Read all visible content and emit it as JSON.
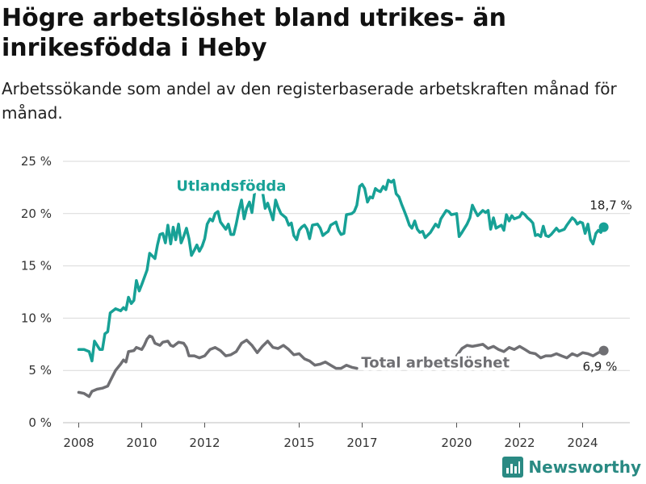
{
  "title": "Högre arbetslöshet bland utrikes- än inrikesfödda i Heby",
  "subtitle": "Arbetssökande som andel av den registerbaserade arbetskraften månad för månad.",
  "brand": {
    "name": "Newsworthy",
    "color": "#2a8a83"
  },
  "colors": {
    "foreign_born": "#17a196",
    "total": "#6f6f73",
    "grid": "#d9d9d9"
  },
  "chart_data": {
    "type": "line",
    "title": "Högre arbetslöshet bland utrikes- än inrikesfödda i Heby",
    "subtitle": "Arbetssökande som andel av den registerbaserade arbetskraften månad för månad.",
    "xlabel": "",
    "ylabel": "",
    "xlim": [
      2007.5,
      2025.5
    ],
    "ylim": [
      0,
      25
    ],
    "yticks": [
      0,
      5,
      10,
      15,
      20,
      25
    ],
    "ytick_labels": [
      "0 %",
      "5 %",
      "10 %",
      "15 %",
      "20 %",
      "25 %"
    ],
    "xticks": [
      2008,
      2010,
      2012,
      2015,
      2017,
      2020,
      2022,
      2024
    ],
    "xtick_labels": [
      "2008",
      "2010",
      "2012",
      "2015",
      "2017",
      "2020",
      "2022",
      "2024"
    ],
    "grid": true,
    "series": [
      {
        "name": "Utlandsfödda",
        "end_label": "18,7 %",
        "points": [
          [
            2008.0,
            7.0
          ],
          [
            2008.17,
            7.0
          ],
          [
            2008.33,
            6.8
          ],
          [
            2008.42,
            5.9
          ],
          [
            2008.5,
            7.8
          ],
          [
            2008.67,
            7.0
          ],
          [
            2008.75,
            7.0
          ],
          [
            2008.83,
            8.5
          ],
          [
            2008.92,
            8.7
          ],
          [
            2009.0,
            10.5
          ],
          [
            2009.17,
            10.9
          ],
          [
            2009.33,
            10.7
          ],
          [
            2009.42,
            11.0
          ],
          [
            2009.5,
            10.8
          ],
          [
            2009.58,
            12.0
          ],
          [
            2009.67,
            11.4
          ],
          [
            2009.75,
            11.7
          ],
          [
            2009.83,
            13.6
          ],
          [
            2009.92,
            12.6
          ],
          [
            2010.0,
            13.2
          ],
          [
            2010.17,
            14.6
          ],
          [
            2010.25,
            16.2
          ],
          [
            2010.42,
            15.7
          ],
          [
            2010.5,
            17.0
          ],
          [
            2010.58,
            18.0
          ],
          [
            2010.67,
            18.1
          ],
          [
            2010.75,
            17.2
          ],
          [
            2010.83,
            18.9
          ],
          [
            2010.92,
            17.1
          ],
          [
            2011.0,
            18.7
          ],
          [
            2011.08,
            17.5
          ],
          [
            2011.17,
            19.0
          ],
          [
            2011.25,
            17.2
          ],
          [
            2011.33,
            17.8
          ],
          [
            2011.42,
            18.6
          ],
          [
            2011.5,
            17.6
          ],
          [
            2011.58,
            16.0
          ],
          [
            2011.67,
            16.5
          ],
          [
            2011.75,
            17.0
          ],
          [
            2011.83,
            16.4
          ],
          [
            2011.92,
            16.9
          ],
          [
            2012.0,
            17.6
          ],
          [
            2012.08,
            19.0
          ],
          [
            2012.17,
            19.5
          ],
          [
            2012.25,
            19.3
          ],
          [
            2012.33,
            20.0
          ],
          [
            2012.42,
            20.2
          ],
          [
            2012.5,
            19.2
          ],
          [
            2012.67,
            18.5
          ],
          [
            2012.75,
            19.0
          ],
          [
            2012.83,
            18.0
          ],
          [
            2012.92,
            18.0
          ],
          [
            2013.0,
            19.0
          ],
          [
            2013.08,
            20.2
          ],
          [
            2013.17,
            21.3
          ],
          [
            2013.25,
            19.5
          ],
          [
            2013.33,
            20.5
          ],
          [
            2013.42,
            21.1
          ],
          [
            2013.5,
            20.1
          ],
          [
            2013.58,
            21.9
          ]
        ],
        "points_after_label": [
          [
            2013.75,
            22.7
          ],
          [
            2013.83,
            22.2
          ],
          [
            2013.92,
            20.5
          ],
          [
            2014.0,
            21.0
          ],
          [
            2014.17,
            19.4
          ],
          [
            2014.25,
            21.3
          ],
          [
            2014.33,
            20.6
          ],
          [
            2014.42,
            20.0
          ],
          [
            2014.58,
            19.6
          ],
          [
            2014.67,
            18.9
          ],
          [
            2014.75,
            19.1
          ],
          [
            2014.83,
            17.9
          ],
          [
            2014.92,
            17.5
          ],
          [
            2015.0,
            18.4
          ],
          [
            2015.08,
            18.7
          ],
          [
            2015.17,
            18.9
          ],
          [
            2015.25,
            18.5
          ],
          [
            2015.33,
            17.6
          ],
          [
            2015.42,
            18.9
          ],
          [
            2015.58,
            19.0
          ],
          [
            2015.67,
            18.6
          ],
          [
            2015.75,
            17.9
          ],
          [
            2015.83,
            18.1
          ],
          [
            2015.92,
            18.3
          ],
          [
            2016.0,
            18.9
          ],
          [
            2016.17,
            19.2
          ],
          [
            2016.25,
            18.4
          ],
          [
            2016.33,
            18.0
          ],
          [
            2016.42,
            18.1
          ],
          [
            2016.5,
            19.9
          ],
          [
            2016.67,
            20.0
          ],
          [
            2016.75,
            20.2
          ],
          [
            2016.83,
            20.8
          ],
          [
            2016.92,
            22.6
          ],
          [
            2017.0,
            22.8
          ],
          [
            2017.08,
            22.4
          ],
          [
            2017.17,
            21.1
          ],
          [
            2017.25,
            21.6
          ],
          [
            2017.33,
            21.5
          ],
          [
            2017.42,
            22.4
          ],
          [
            2017.5,
            22.2
          ],
          [
            2017.58,
            22.1
          ],
          [
            2017.67,
            22.6
          ],
          [
            2017.75,
            22.3
          ],
          [
            2017.83,
            23.2
          ],
          [
            2017.92,
            23.0
          ],
          [
            2018.0,
            23.2
          ],
          [
            2018.08,
            21.9
          ],
          [
            2018.17,
            21.6
          ],
          [
            2018.25,
            20.9
          ],
          [
            2018.33,
            20.3
          ],
          [
            2018.42,
            19.6
          ],
          [
            2018.5,
            18.9
          ],
          [
            2018.58,
            18.6
          ],
          [
            2018.67,
            19.3
          ],
          [
            2018.75,
            18.5
          ],
          [
            2018.83,
            18.2
          ],
          [
            2018.92,
            18.3
          ],
          [
            2019.0,
            17.7
          ],
          [
            2019.17,
            18.2
          ],
          [
            2019.33,
            19.0
          ],
          [
            2019.42,
            18.7
          ],
          [
            2019.5,
            19.5
          ],
          [
            2019.67,
            20.3
          ],
          [
            2019.75,
            20.2
          ],
          [
            2019.83,
            19.9
          ],
          [
            2020.0,
            20.0
          ],
          [
            2020.08,
            17.8
          ],
          [
            2020.17,
            18.2
          ],
          [
            2020.33,
            19.0
          ],
          [
            2020.42,
            19.6
          ],
          [
            2020.5,
            20.8
          ],
          [
            2020.58,
            20.3
          ],
          [
            2020.67,
            19.8
          ],
          [
            2020.83,
            20.3
          ],
          [
            2020.92,
            20.1
          ],
          [
            2021.0,
            20.3
          ],
          [
            2021.08,
            18.5
          ],
          [
            2021.17,
            19.6
          ],
          [
            2021.25,
            18.6
          ],
          [
            2021.42,
            18.9
          ],
          [
            2021.5,
            18.4
          ],
          [
            2021.58,
            19.9
          ],
          [
            2021.67,
            19.3
          ],
          [
            2021.75,
            19.8
          ],
          [
            2021.83,
            19.5
          ],
          [
            2022.0,
            19.7
          ],
          [
            2022.08,
            20.1
          ],
          [
            2022.17,
            19.9
          ],
          [
            2022.25,
            19.6
          ],
          [
            2022.33,
            19.4
          ],
          [
            2022.42,
            19.1
          ],
          [
            2022.5,
            17.9
          ],
          [
            2022.58,
            18.0
          ],
          [
            2022.67,
            17.8
          ],
          [
            2022.75,
            18.8
          ],
          [
            2022.83,
            17.9
          ],
          [
            2022.92,
            17.8
          ],
          [
            2023.0,
            18.0
          ],
          [
            2023.17,
            18.6
          ],
          [
            2023.25,
            18.3
          ],
          [
            2023.42,
            18.5
          ],
          [
            2023.5,
            18.9
          ],
          [
            2023.67,
            19.6
          ],
          [
            2023.75,
            19.4
          ],
          [
            2023.83,
            19.0
          ],
          [
            2023.92,
            19.2
          ],
          [
            2024.0,
            19.1
          ],
          [
            2024.08,
            18.1
          ],
          [
            2024.17,
            19.0
          ],
          [
            2024.25,
            17.5
          ],
          [
            2024.33,
            17.1
          ],
          [
            2024.42,
            18.1
          ],
          [
            2024.5,
            18.4
          ],
          [
            2024.58,
            18.2
          ],
          [
            2024.67,
            18.7
          ]
        ]
      },
      {
        "name": "Total arbetslöshet",
        "end_label": "6,9 %",
        "points": [
          [
            2008.0,
            2.9
          ],
          [
            2008.17,
            2.8
          ],
          [
            2008.33,
            2.5
          ],
          [
            2008.42,
            3.0
          ],
          [
            2008.58,
            3.2
          ],
          [
            2008.75,
            3.3
          ],
          [
            2008.92,
            3.5
          ],
          [
            2009.0,
            4.0
          ],
          [
            2009.17,
            5.0
          ],
          [
            2009.33,
            5.6
          ],
          [
            2009.42,
            6.0
          ],
          [
            2009.5,
            5.8
          ],
          [
            2009.58,
            6.8
          ],
          [
            2009.75,
            6.9
          ],
          [
            2009.83,
            7.2
          ],
          [
            2010.0,
            7.0
          ],
          [
            2010.08,
            7.4
          ],
          [
            2010.17,
            8.0
          ],
          [
            2010.25,
            8.3
          ],
          [
            2010.33,
            8.2
          ],
          [
            2010.42,
            7.6
          ],
          [
            2010.58,
            7.4
          ],
          [
            2010.67,
            7.7
          ],
          [
            2010.83,
            7.8
          ],
          [
            2010.92,
            7.4
          ],
          [
            2011.0,
            7.3
          ],
          [
            2011.17,
            7.7
          ],
          [
            2011.33,
            7.6
          ],
          [
            2011.42,
            7.2
          ],
          [
            2011.5,
            6.4
          ],
          [
            2011.67,
            6.4
          ],
          [
            2011.83,
            6.2
          ],
          [
            2012.0,
            6.4
          ],
          [
            2012.17,
            7.0
          ],
          [
            2012.33,
            7.2
          ],
          [
            2012.5,
            6.9
          ],
          [
            2012.67,
            6.4
          ],
          [
            2012.83,
            6.5
          ],
          [
            2013.0,
            6.8
          ],
          [
            2013.17,
            7.6
          ],
          [
            2013.33,
            7.9
          ],
          [
            2013.5,
            7.4
          ],
          [
            2013.67,
            6.7
          ],
          [
            2013.83,
            7.3
          ],
          [
            2014.0,
            7.8
          ],
          [
            2014.17,
            7.2
          ],
          [
            2014.33,
            7.1
          ],
          [
            2014.5,
            7.4
          ],
          [
            2014.67,
            7.0
          ],
          [
            2014.83,
            6.5
          ],
          [
            2015.0,
            6.6
          ],
          [
            2015.17,
            6.1
          ],
          [
            2015.33,
            5.9
          ],
          [
            2015.5,
            5.5
          ],
          [
            2015.67,
            5.6
          ],
          [
            2015.83,
            5.8
          ],
          [
            2016.0,
            5.5
          ],
          [
            2016.17,
            5.2
          ],
          [
            2016.33,
            5.2
          ],
          [
            2016.5,
            5.5
          ],
          [
            2016.67,
            5.3
          ],
          [
            2016.83,
            5.2
          ]
        ],
        "points_after_label": [
          [
            2020.0,
            6.4
          ],
          [
            2020.17,
            7.1
          ],
          [
            2020.33,
            7.4
          ],
          [
            2020.5,
            7.3
          ],
          [
            2020.67,
            7.4
          ],
          [
            2020.83,
            7.5
          ],
          [
            2021.0,
            7.1
          ],
          [
            2021.17,
            7.3
          ],
          [
            2021.33,
            7.0
          ],
          [
            2021.5,
            6.8
          ],
          [
            2021.67,
            7.2
          ],
          [
            2021.83,
            7.0
          ],
          [
            2022.0,
            7.3
          ],
          [
            2022.17,
            7.0
          ],
          [
            2022.33,
            6.7
          ],
          [
            2022.5,
            6.6
          ],
          [
            2022.67,
            6.2
          ],
          [
            2022.83,
            6.4
          ],
          [
            2023.0,
            6.4
          ],
          [
            2023.17,
            6.6
          ],
          [
            2023.33,
            6.4
          ],
          [
            2023.5,
            6.2
          ],
          [
            2023.67,
            6.6
          ],
          [
            2023.83,
            6.4
          ],
          [
            2024.0,
            6.7
          ],
          [
            2024.17,
            6.6
          ],
          [
            2024.33,
            6.4
          ],
          [
            2024.5,
            6.7
          ],
          [
            2024.67,
            6.9
          ]
        ]
      }
    ]
  }
}
